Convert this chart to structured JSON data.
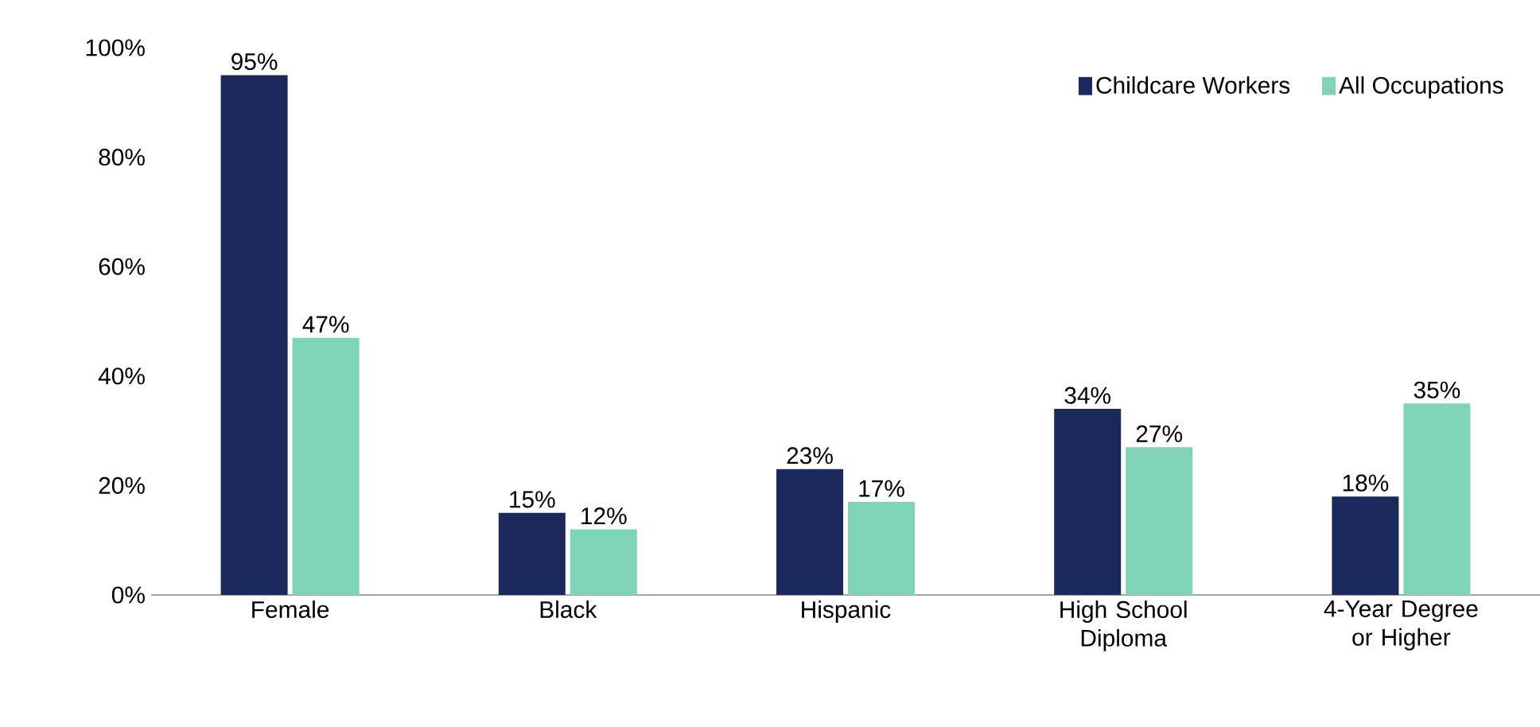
{
  "chart_data": {
    "type": "bar",
    "categories": [
      "Female",
      "Black",
      "Hispanic",
      "High School Diploma",
      "4-Year Degree or Higher"
    ],
    "series": [
      {
        "name": "Childcare Workers",
        "color": "#1b2a5a",
        "values": [
          95,
          15,
          23,
          34,
          18
        ],
        "value_labels": [
          "95%",
          "15%",
          "23%",
          "34%",
          "18%"
        ]
      },
      {
        "name": "All Occupations",
        "color": "#7fd4b7",
        "values": [
          47,
          12,
          17,
          27,
          35
        ],
        "value_labels": [
          "47%",
          "12%",
          "17%",
          "27%",
          "35%"
        ]
      }
    ],
    "ylim": [
      0,
      100
    ],
    "yticks": [
      {
        "value": 0,
        "label": "0%"
      },
      {
        "value": 20,
        "label": "20%"
      },
      {
        "value": 40,
        "label": "40%"
      },
      {
        "value": 60,
        "label": "60%"
      },
      {
        "value": 80,
        "label": "80%"
      },
      {
        "value": 100,
        "label": "100%"
      }
    ],
    "legend": "top right"
  }
}
